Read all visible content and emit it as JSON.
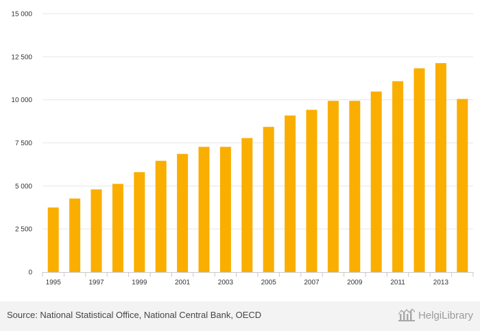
{
  "chart_data": {
    "type": "bar",
    "title": "",
    "xlabel": "",
    "ylabel": "",
    "x": [
      1995,
      1996,
      1997,
      1998,
      1999,
      2000,
      2001,
      2002,
      2003,
      2004,
      2005,
      2006,
      2007,
      2008,
      2009,
      2010,
      2011,
      2012,
      2013,
      2014
    ],
    "values": [
      3750,
      4270,
      4800,
      5120,
      5800,
      6460,
      6860,
      7270,
      7270,
      7780,
      8430,
      9090,
      9420,
      9940,
      9940,
      10480,
      11080,
      11830,
      12130,
      10050
    ],
    "x_tick_labels": [
      "1995",
      "1997",
      "1999",
      "2001",
      "2003",
      "2005",
      "2007",
      "2009",
      "2011",
      "2013"
    ],
    "y_ticks": [
      0,
      2500,
      5000,
      7500,
      10000,
      12500,
      15000
    ],
    "y_tick_labels": [
      "0",
      "2 500",
      "5 000",
      "7 500",
      "10 000",
      "12 500",
      "15 000"
    ],
    "ylim": [
      0,
      15000
    ],
    "grid": true,
    "bar_color": "#f9ae00"
  },
  "footer": {
    "source": "Source: National Statistical Office, National Central Bank, OECD",
    "brand": "HelgiLibrary"
  },
  "colors": {
    "grid": "#e6e6e6",
    "axis": "#c8c8c8",
    "footer_bg": "#f3f3f3",
    "brand": "#9a9a9a"
  }
}
